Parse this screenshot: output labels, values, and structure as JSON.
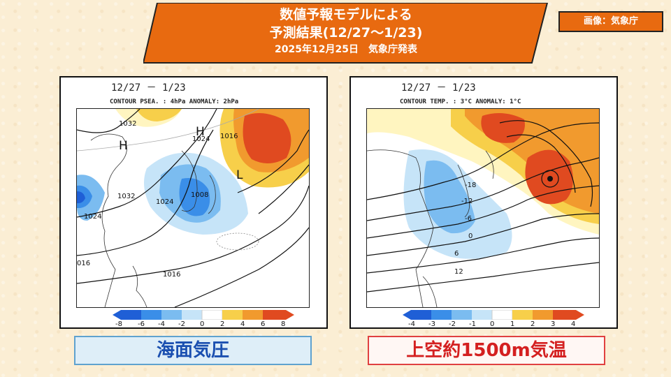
{
  "banner": {
    "line1": "数値予報モデルによる",
    "line2": "予測結果(12/27～1/23)",
    "line3": "2025年12月25日　気象庁発表",
    "color": "#e86a10"
  },
  "credit": "画像：気象庁",
  "left_panel": {
    "period": "12/27 － 1/23",
    "contour_note": "CONTOUR PSEA. :  4hPa    ANOMALY:  2hPa",
    "high_labels": [
      "H",
      "H"
    ],
    "low_label": "L",
    "isobars": [
      "1032",
      "1024",
      "1016",
      "1032",
      "1024",
      "1008",
      "1024",
      "016",
      "1016"
    ],
    "colorbar_ticks": [
      "-8",
      "-6",
      "-4",
      "-2",
      "0",
      "2",
      "4",
      "6",
      "8"
    ],
    "caption": "海面気圧"
  },
  "right_panel": {
    "period": "12/27 － 1/23",
    "contour_note": "CONTOUR TEMP. :  3°C    ANOMALY:  1°C",
    "isotherms": [
      "-18",
      "-12",
      "-6",
      "0",
      "6",
      "12"
    ],
    "colorbar_ticks": [
      "-4",
      "-3",
      "-2",
      "-1",
      "0",
      "1",
      "2",
      "3",
      "4"
    ],
    "caption": "上空約1500m気温"
  },
  "colors": {
    "anomaly_scale": [
      "#1f5fd6",
      "#3a8ee8",
      "#7bbcf0",
      "#c6e4f8",
      "#ffffff",
      "#fff5c0",
      "#f7cf4a",
      "#f19a2e",
      "#e04a20"
    ],
    "caption_left_text": "#1a4fb0",
    "caption_right_text": "#d42020"
  }
}
